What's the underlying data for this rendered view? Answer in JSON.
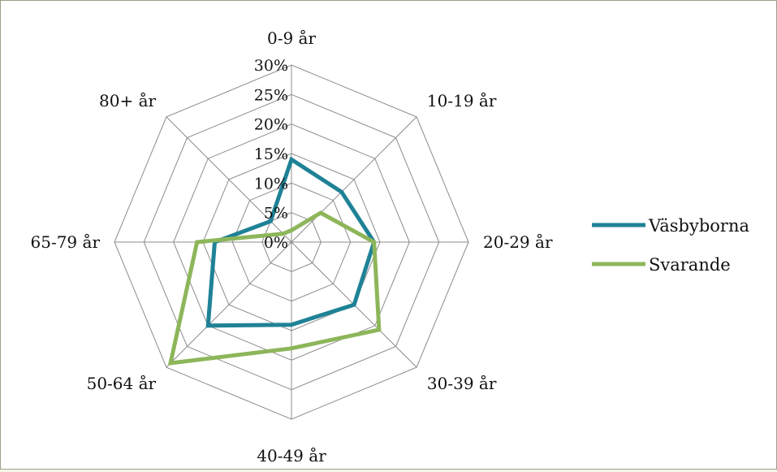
{
  "colors": {
    "grid": "#8c8c8c",
    "background": "#ffffff"
  },
  "chart_data": {
    "type": "radar",
    "title": "",
    "categories": [
      "0-9 år",
      "10-19 år",
      "20-29 år",
      "30-39 år",
      "40-49 år",
      "50-64 år",
      "65-79 år",
      "80+ år"
    ],
    "rlim": [
      0,
      30
    ],
    "ticks": [
      0,
      5,
      10,
      15,
      20,
      25,
      30
    ],
    "tick_labels": [
      "0%",
      "5%",
      "10%",
      "15%",
      "20%",
      "25%",
      "30%"
    ],
    "unit": "%",
    "grid": true,
    "legend_position": "right",
    "series": [
      {
        "name": "Väsbyborna",
        "color": "#1f8296",
        "values": [
          14,
          12,
          14,
          15,
          14,
          20,
          13,
          5
        ]
      },
      {
        "name": "Svarande",
        "color": "#8db65a",
        "values": [
          2,
          7,
          14,
          21,
          18,
          29,
          16,
          2
        ]
      }
    ]
  }
}
